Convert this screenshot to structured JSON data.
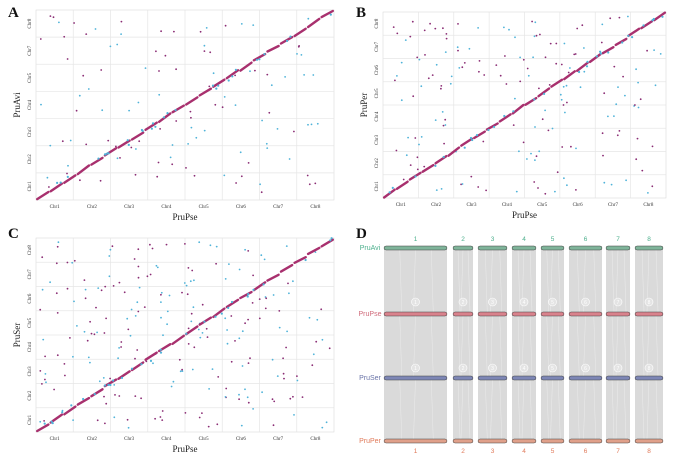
{
  "colors": {
    "line": "#a8306e",
    "dot_purple": "#8a2c74",
    "dot_blue": "#4fb3d9",
    "grid": "#e6e6e6",
    "border": "#d9d9d9",
    "band": "#d6d6d6",
    "bar_avi": "#7fb49a",
    "bar_pse": "#d9828c",
    "bar_ser": "#7d86b5",
    "bar_per": "#e0a08a",
    "label_avi": "#4caf8c",
    "label_pse": "#d06a7a",
    "label_ser": "#6a74a8",
    "label_per": "#e07a5a"
  },
  "panels": {
    "A": {
      "letter": "A",
      "xlabel": "PruPse",
      "ylabel": "PruAvi",
      "x_ticks": [
        "Chr1",
        "Chr2",
        "Chr3",
        "Chr4",
        "Chr5",
        "Chr6",
        "Chr7",
        "Chr8"
      ],
      "y_ticks": [
        "Chr1",
        "Chr2",
        "Chr3",
        "Chr4",
        "Chr5",
        "Chr7",
        "Chr8"
      ]
    },
    "B": {
      "letter": "B",
      "xlabel": "PruPse",
      "ylabel": "PruPer",
      "x_ticks": [
        "Chr1",
        "Chr2",
        "Chr3",
        "Chr4",
        "Chr5",
        "Chr6",
        "Chr7",
        "Chr8"
      ],
      "y_ticks": [
        "Chr1",
        "Chr2",
        "Chr3",
        "Chr4",
        "Chr5",
        "Chr6",
        "Chr7",
        "Chr8"
      ]
    },
    "C": {
      "letter": "C",
      "xlabel": "PruPse",
      "ylabel": "PruSer",
      "x_ticks": [
        "Chr1",
        "Chr2",
        "Chr3",
        "Chr4",
        "Chr5",
        "Chr6",
        "Chr7",
        "Chr8"
      ],
      "y_ticks": [
        "Chr1",
        "Chr2",
        "Chr3",
        "Chr4",
        "Chr5",
        "Chr6",
        "Chr7",
        "Chr8"
      ]
    },
    "D": {
      "letter": "D",
      "genomes": [
        "PruAvi",
        "PruPse",
        "PruSer",
        "PruPer"
      ],
      "top_numbers": [
        "1",
        "2",
        "3",
        "4",
        "5",
        "6",
        "7",
        "8"
      ],
      "bottom_numbers": [
        "1",
        "2",
        "3",
        "4",
        "5",
        "6",
        "7",
        "8"
      ],
      "bar_numbers": [
        "1",
        "2",
        "3",
        "4",
        "5",
        "6",
        "7",
        "8"
      ]
    }
  }
}
